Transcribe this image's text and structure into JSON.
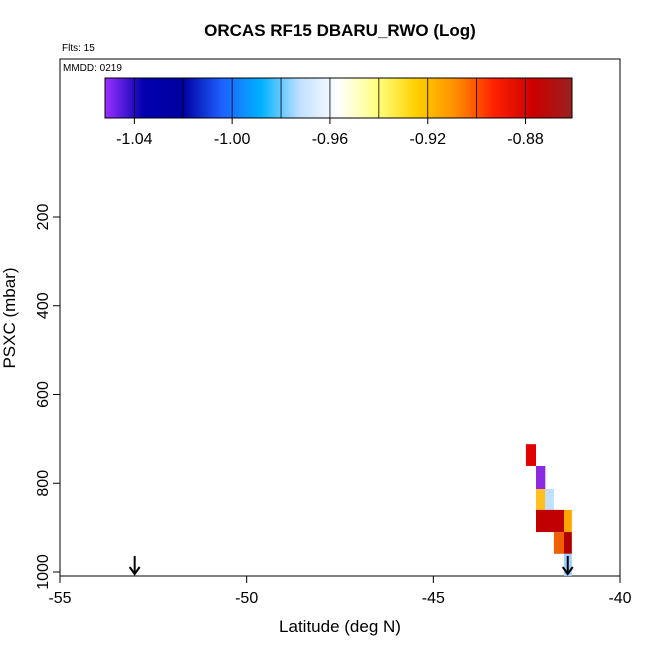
{
  "chart_data": {
    "type": "cells",
    "title": "ORCAS RF15 DBARU_RWO (Log)",
    "flights_note": "Flts: 15",
    "date_note": "MMDD: 0219",
    "x_label": "Latitude (deg N)",
    "y_label": "PSXC (mbar)",
    "xlim": [
      -55,
      -40
    ],
    "xticks": [
      -55,
      -50,
      -45,
      -40
    ],
    "ylim": [
      1009,
      -156
    ],
    "yticks": [
      200,
      400,
      600,
      800,
      1000
    ],
    "colorbar": {
      "lim": [
        -1.052,
        -0.861
      ],
      "ticks": [
        -1.04,
        {
          "value": -1,
          "label": "-1.00"
        },
        -0.96,
        -0.92,
        -0.88
      ],
      "breaks": [
        -1.04,
        -1.02,
        -1.0,
        -0.98,
        -0.96,
        -0.94,
        -0.92,
        -0.9,
        -0.88
      ],
      "colors": [
        "#9b30ff",
        "#0000b0",
        "#0000a0",
        "#1e60ff",
        "#00b0ff",
        "#bfe0ff",
        "#ffffff",
        "#ffff80",
        "#ffd000",
        "#ff9000",
        "#ff2000",
        "#cc0000",
        "#992020"
      ]
    },
    "cells": [
      {
        "lat": [
          -42.52,
          -42.25
        ],
        "p": [
          712,
          761
        ],
        "color": "#e00000"
      },
      {
        "lat": [
          -42.25,
          -42.0
        ],
        "p": [
          761,
          813
        ],
        "color": "#8a2be2"
      },
      {
        "lat": [
          -42.25,
          -42.0
        ],
        "p": [
          813,
          860
        ],
        "color": "#ffc020"
      },
      {
        "lat": [
          -42.0,
          -41.77
        ],
        "p": [
          813,
          860
        ],
        "color": "#c0e0ff"
      },
      {
        "lat": [
          -42.25,
          -41.5
        ],
        "p": [
          860,
          910
        ],
        "color": "#c00000"
      },
      {
        "lat": [
          -41.5,
          -41.29
        ],
        "p": [
          860,
          910
        ],
        "color": "#ffa500"
      },
      {
        "lat": [
          -41.77,
          -41.5
        ],
        "p": [
          910,
          959
        ],
        "color": "#f06000"
      },
      {
        "lat": [
          -41.5,
          -41.29
        ],
        "p": [
          910,
          959
        ],
        "color": "#b00000"
      },
      {
        "lat": [
          -41.5,
          -41.29
        ],
        "p": [
          959,
          1009
        ],
        "color": "#a0d0ff"
      }
    ],
    "arrows": [
      -53,
      -41.4
    ]
  }
}
